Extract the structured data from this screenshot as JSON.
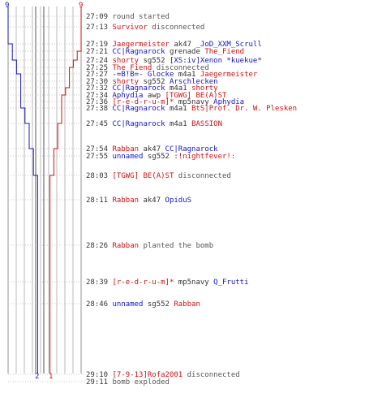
{
  "counts": {
    "top_left": "9",
    "top_right": "9",
    "bottom_blue": "2",
    "bottom_red": "1"
  },
  "colors": {
    "blue_team": "#1414c8",
    "red_team": "#d01010",
    "grid": "#a0a0a0",
    "text": "#333333"
  },
  "chart_data": {
    "type": "line",
    "x_is": "time",
    "series": [
      {
        "color": "#1414c8",
        "values": [
          9,
          9,
          9,
          8,
          8,
          7,
          7,
          6,
          6,
          6,
          6,
          6,
          5,
          4,
          3,
          3,
          2,
          2
        ]
      },
      {
        "color": "#d01010",
        "values": [
          9,
          9,
          9,
          9,
          8,
          7,
          6,
          6,
          6,
          5,
          4,
          4,
          4,
          3,
          2,
          2,
          1,
          1
        ]
      }
    ]
  },
  "events": [
    {
      "time": "27:09",
      "parts": [
        {
          "t": "round started",
          "c": "gray"
        }
      ]
    },
    {
      "time": "27:13",
      "parts": [
        {
          "t": "Survivor",
          "c": "red"
        },
        {
          "t": " disconnected",
          "c": "gray"
        }
      ]
    },
    {
      "time": "27:19",
      "parts": [
        {
          "t": "Jaegermeister",
          "c": "red"
        },
        {
          "t": " ak47 ",
          "c": "plain"
        },
        {
          "t": "_JoD_XXM_Scrull",
          "c": "blue"
        }
      ]
    },
    {
      "time": "27:21",
      "parts": [
        {
          "t": "CC|Ragnarock",
          "c": "blue"
        },
        {
          "t": " grenade ",
          "c": "plain"
        },
        {
          "t": "The_Fiend",
          "c": "red"
        }
      ]
    },
    {
      "time": "27:24",
      "parts": [
        {
          "t": "shorty",
          "c": "red"
        },
        {
          "t": " sg552 ",
          "c": "plain"
        },
        {
          "t": "[XS:iv]Xenon *kuekue*",
          "c": "blue"
        }
      ]
    },
    {
      "time": "27:25",
      "parts": [
        {
          "t": "The_Fiend",
          "c": "red"
        },
        {
          "t": " disconnected",
          "c": "gray"
        }
      ]
    },
    {
      "time": "27:27",
      "parts": [
        {
          "t": "-=B!B=- Glocke",
          "c": "blue"
        },
        {
          "t": " m4a1 ",
          "c": "plain"
        },
        {
          "t": "Jaegermeister",
          "c": "red"
        }
      ]
    },
    {
      "time": "27:30",
      "parts": [
        {
          "t": "shorty",
          "c": "red"
        },
        {
          "t": " sg552 ",
          "c": "plain"
        },
        {
          "t": "Arschlecken",
          "c": "blue"
        }
      ]
    },
    {
      "time": "27:32",
      "parts": [
        {
          "t": "CC|Ragnarock",
          "c": "blue"
        },
        {
          "t": " m4a1 ",
          "c": "plain"
        },
        {
          "t": "shorty",
          "c": "red"
        }
      ]
    },
    {
      "time": "27:34",
      "parts": [
        {
          "t": "Aphydia",
          "c": "blue"
        },
        {
          "t": " awp ",
          "c": "plain"
        },
        {
          "t": "[TGWG] BE(A)ST",
          "c": "red"
        }
      ]
    },
    {
      "time": "27:36",
      "parts": [
        {
          "t": "[r-e-d-r-u-m]*",
          "c": "red"
        },
        {
          "t": " mp5navy ",
          "c": "plain"
        },
        {
          "t": "Aphydia",
          "c": "blue"
        }
      ]
    },
    {
      "time": "27:38",
      "parts": [
        {
          "t": "CC|Ragnarock",
          "c": "blue"
        },
        {
          "t": " m4a1 ",
          "c": "plain"
        },
        {
          "t": "BtS|Prof. Dr. W. Plesken",
          "c": "red"
        }
      ]
    },
    {
      "time": "27:45",
      "parts": [
        {
          "t": "CC|Ragnarock",
          "c": "blue"
        },
        {
          "t": " m4a1 ",
          "c": "plain"
        },
        {
          "t": "BASSION",
          "c": "red"
        }
      ]
    },
    {
      "time": "27:54",
      "parts": [
        {
          "t": "Rabban",
          "c": "red"
        },
        {
          "t": " ak47 ",
          "c": "plain"
        },
        {
          "t": "CC|Ragnarock",
          "c": "blue"
        }
      ]
    },
    {
      "time": "27:55",
      "parts": [
        {
          "t": "unnamed",
          "c": "blue"
        },
        {
          "t": " sg552 ",
          "c": "plain"
        },
        {
          "t": ":!nightfever!:",
          "c": "red"
        }
      ]
    },
    {
      "time": "28:03",
      "parts": [
        {
          "t": "[TGWG] BE(A)ST",
          "c": "red"
        },
        {
          "t": " disconnected",
          "c": "gray"
        }
      ]
    },
    {
      "time": "28:11",
      "parts": [
        {
          "t": "Rabban",
          "c": "red"
        },
        {
          "t": " ak47 ",
          "c": "plain"
        },
        {
          "t": "OpiduS",
          "c": "blue"
        }
      ]
    },
    {
      "time": "28:26",
      "parts": [
        {
          "t": "Rabban",
          "c": "red"
        },
        {
          "t": " planted the bomb",
          "c": "gray"
        }
      ]
    },
    {
      "time": "28:39",
      "parts": [
        {
          "t": "[r-e-d-r-u-m]*",
          "c": "red"
        },
        {
          "t": " mp5navy ",
          "c": "plain"
        },
        {
          "t": "Q_Frutti",
          "c": "blue"
        }
      ]
    },
    {
      "time": "28:46",
      "parts": [
        {
          "t": "unnamed",
          "c": "blue"
        },
        {
          "t": " sg552 ",
          "c": "plain"
        },
        {
          "t": "Rabban",
          "c": "red"
        }
      ]
    },
    {
      "time": "29:10",
      "parts": [
        {
          "t": "[7-9-13]Rofa2001",
          "c": "red"
        },
        {
          "t": " disconnected",
          "c": "gray"
        }
      ]
    },
    {
      "time": "29:11",
      "parts": [
        {
          "t": "bomb exploded",
          "c": "gray"
        }
      ]
    }
  ]
}
